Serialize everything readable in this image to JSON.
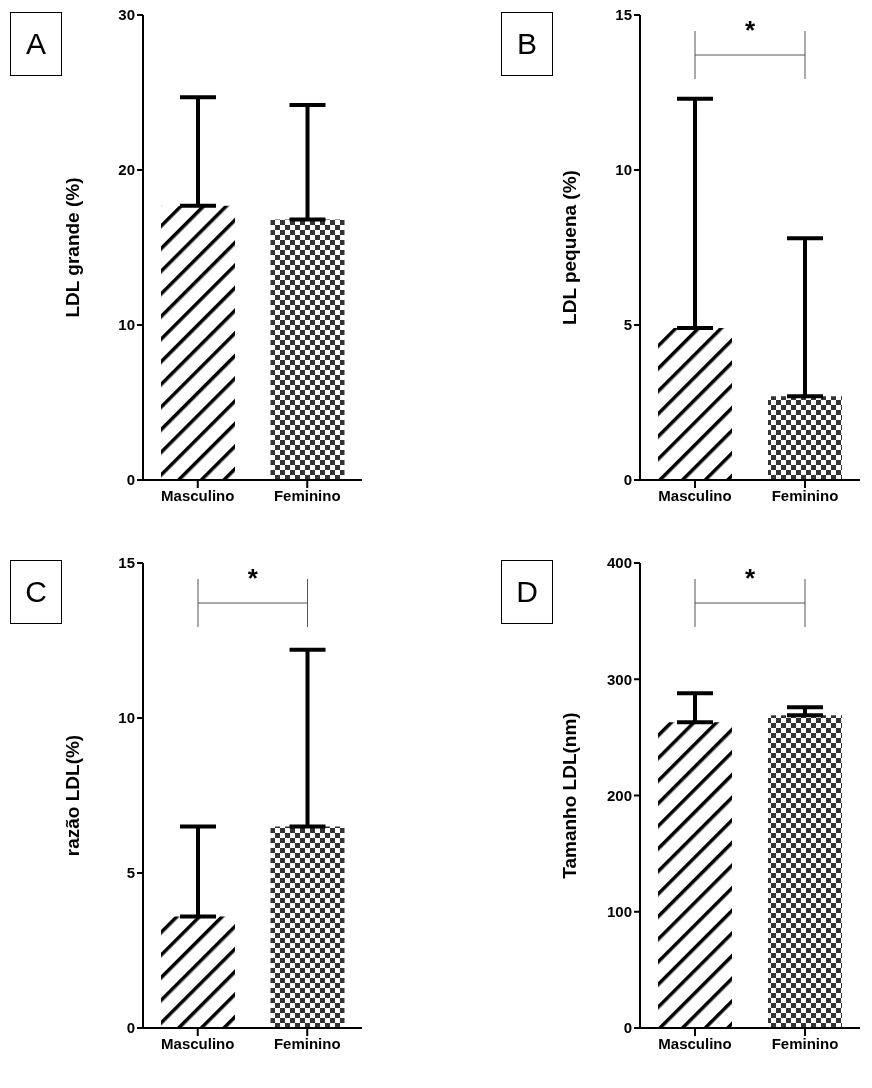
{
  "chart_data": [
    {
      "type": "bar",
      "title": "A",
      "ylabel": "LDL grande (%)",
      "categories": [
        "Masculino",
        "Feminino"
      ],
      "values": [
        17.7,
        16.8
      ],
      "errors": [
        [
          17.7,
          24.7
        ],
        [
          16.8,
          24.2
        ]
      ],
      "colors": [
        "#000000",
        "#333333"
      ],
      "ylim": [
        0,
        30
      ],
      "yticks": [
        0,
        10,
        20,
        30
      ],
      "grid": false,
      "legend": false
    },
    {
      "type": "bar",
      "title": "B",
      "ylabel": "LDL pequena (%)",
      "categories": [
        "Masculino",
        "Feminino"
      ],
      "values": [
        4.9,
        2.7
      ],
      "errors": [
        [
          4.9,
          12.3
        ],
        [
          2.7,
          7.8
        ]
      ],
      "colors": [
        "#000000",
        "#333333"
      ],
      "ylim": [
        0,
        15
      ],
      "yticks": [
        0,
        5,
        10,
        15
      ],
      "grid": false,
      "legend": false,
      "annotations": [
        "*"
      ]
    },
    {
      "type": "bar",
      "title": "C",
      "ylabel": "razão LDL(%)",
      "categories": [
        "Masculino",
        "Feminino"
      ],
      "values": [
        3.6,
        6.5
      ],
      "errors": [
        [
          3.6,
          6.5
        ],
        [
          6.5,
          12.2
        ]
      ],
      "colors": [
        "#000000",
        "#333333"
      ],
      "ylim": [
        0,
        15
      ],
      "yticks": [
        0,
        5,
        10,
        15
      ],
      "grid": false,
      "legend": false,
      "annotations": [
        "*"
      ]
    },
    {
      "type": "bar",
      "title": "D",
      "ylabel": "Tamanho LDL(nm)",
      "categories": [
        "Masculino",
        "Feminino"
      ],
      "values": [
        263,
        269
      ],
      "errors": [
        [
          263,
          288
        ],
        [
          269,
          276
        ]
      ],
      "colors": [
        "#000000",
        "#333333"
      ],
      "ylim": [
        0,
        400
      ],
      "yticks": [
        0,
        100,
        200,
        300,
        400
      ],
      "grid": false,
      "legend": false,
      "annotations": [
        "*"
      ]
    }
  ]
}
